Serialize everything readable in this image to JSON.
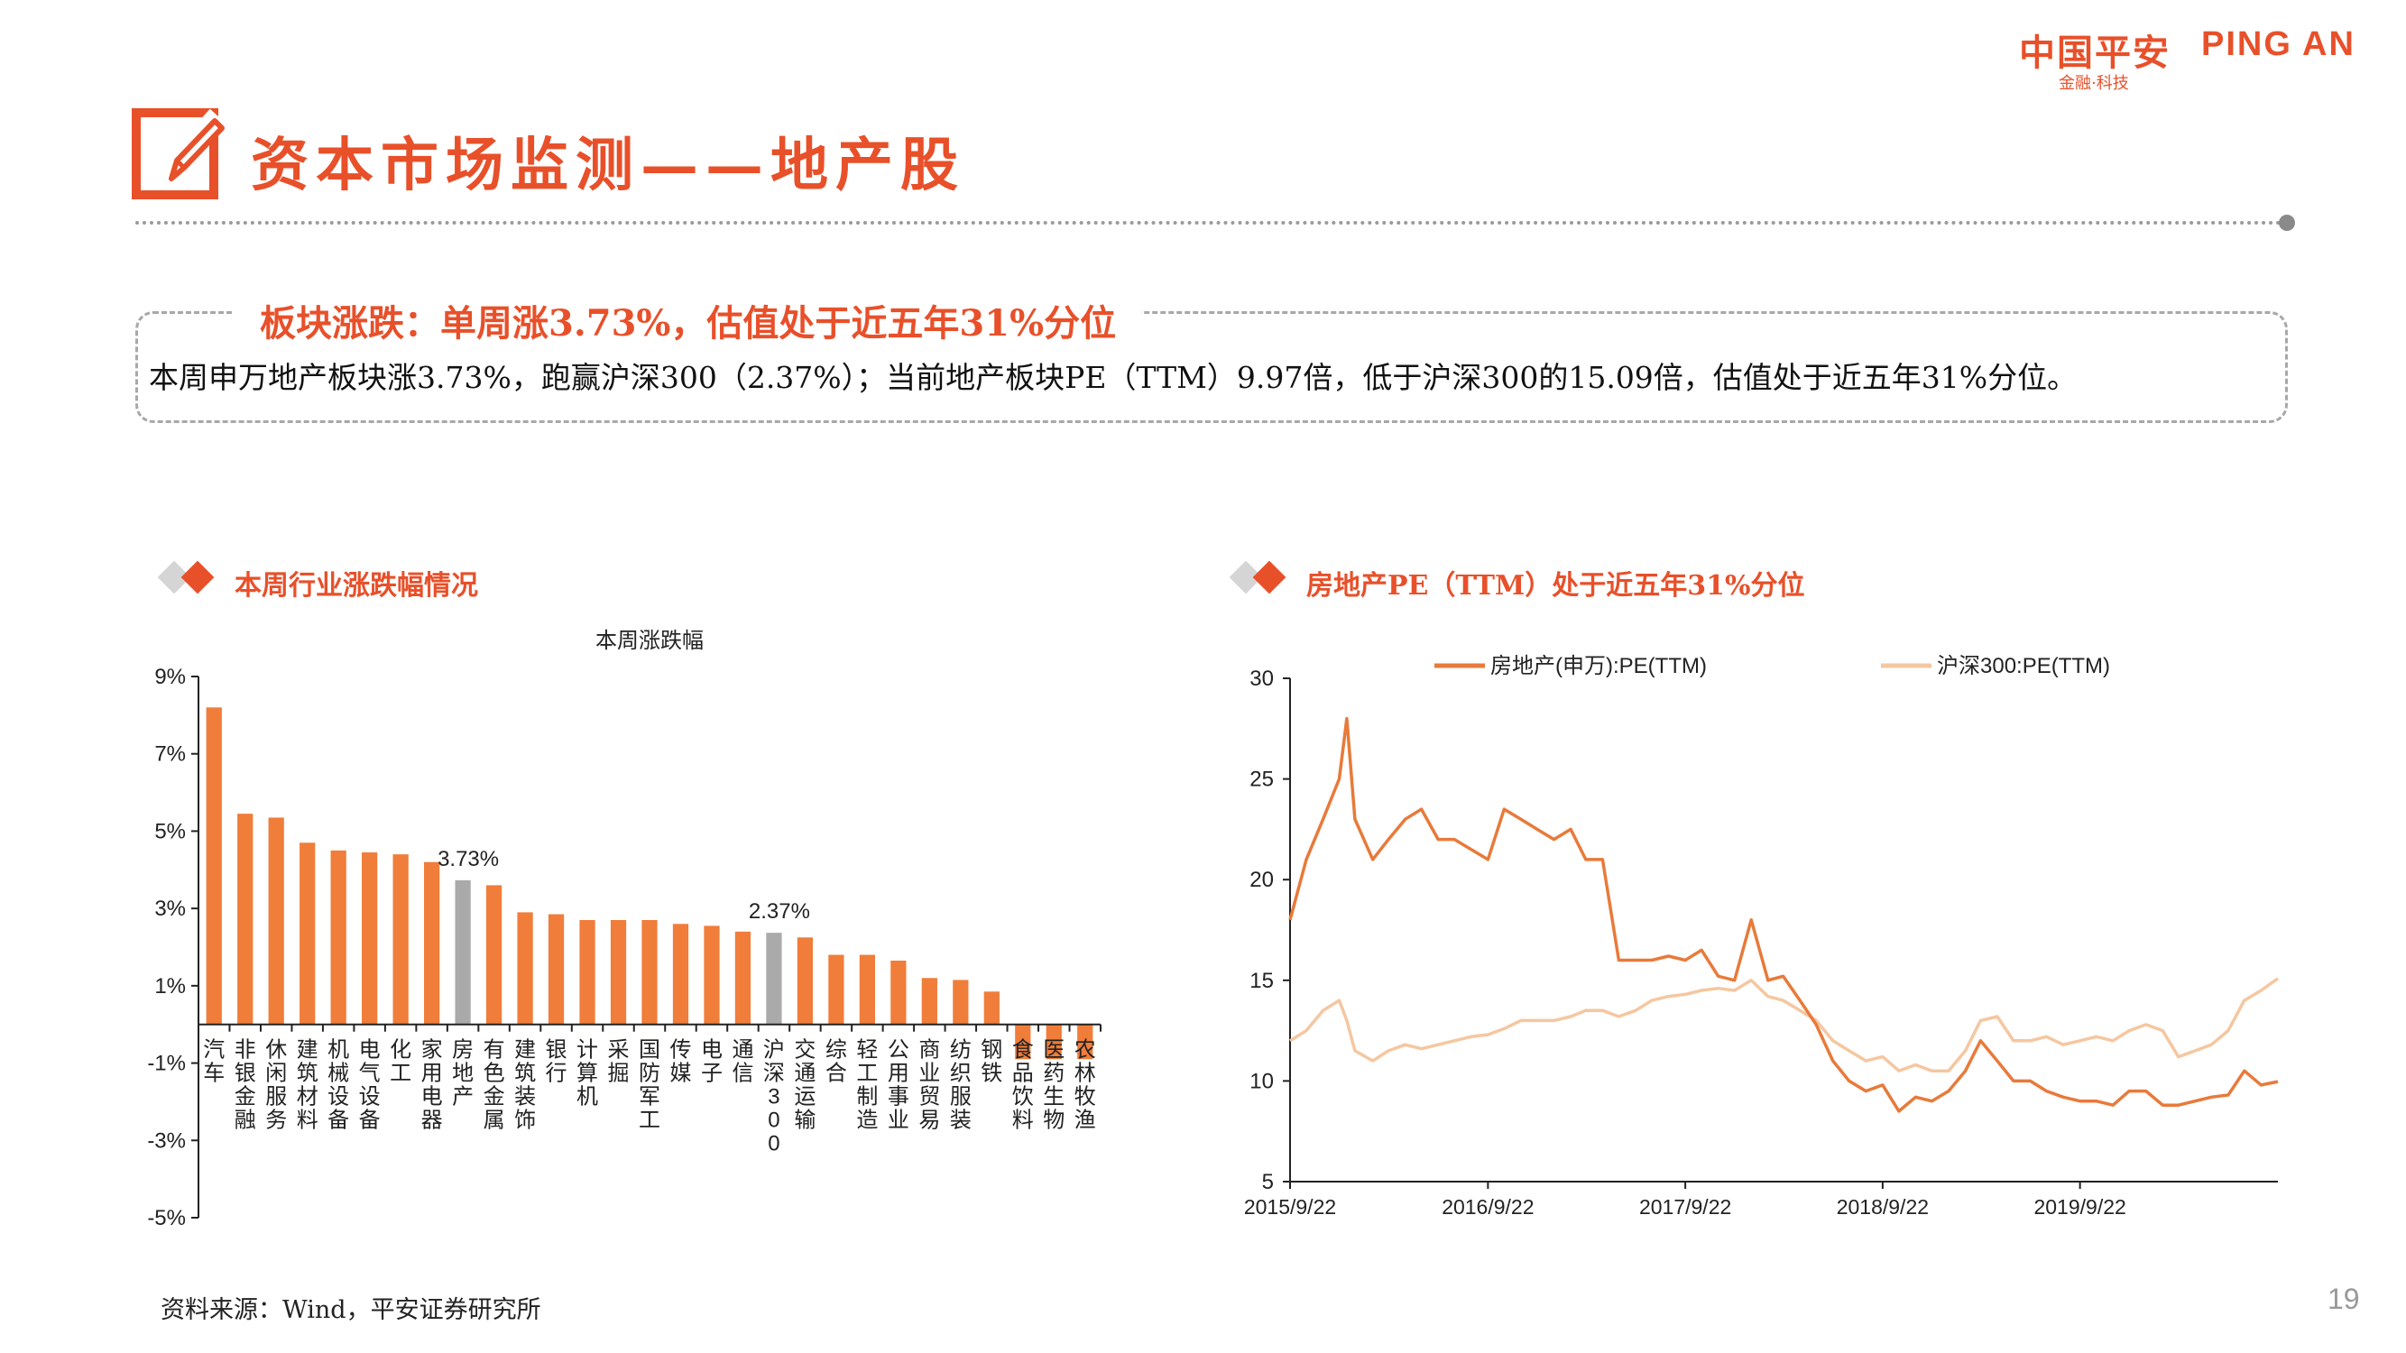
{
  "logo": {
    "cn": "中国平安",
    "en": "PING AN",
    "sub": "金融·科技"
  },
  "title": "资本市场监测——地产股",
  "summary": {
    "title": "板块涨跌：单周涨3.73%，估值处于近五年31%分位",
    "text": "本周申万地产板块涨3.73%，跑赢沪深300（2.37%）；当前地产板块PE（TTM）9.97倍，低于沪深300的15.09倍，估值处于近五年31%分位。"
  },
  "left_section_title": "本周行业涨跌幅情况",
  "right_section_title": "房地产PE（TTM）处于近五年31%分位",
  "source": "资料来源：Wind，平安证券研究所",
  "page_number": "19",
  "colors": {
    "accent": "#E8502A",
    "bar": "#F07D3A",
    "highlight": "#AAAAAA",
    "line1": "#E87A3A",
    "line2": "#F5C7A0"
  },
  "chart_data": [
    {
      "type": "bar",
      "title": "本周涨跌幅",
      "categories": [
        "汽车",
        "非银金融",
        "休闲服务",
        "建筑材料",
        "机械设备",
        "电气设备",
        "化工",
        "家用电器",
        "房地产",
        "有色金属",
        "建筑装饰",
        "银行",
        "计算机",
        "采掘",
        "国防军工",
        "传媒",
        "电子",
        "通信",
        "沪深300",
        "交通运输",
        "综合",
        "轻工制造",
        "公用事业",
        "商业贸易",
        "纺织服装",
        "钢铁",
        "食品饮料",
        "医药生物",
        "农林牧渔"
      ],
      "values": [
        8.2,
        5.45,
        5.35,
        4.7,
        4.5,
        4.45,
        4.4,
        4.2,
        3.73,
        3.6,
        2.9,
        2.85,
        2.7,
        2.7,
        2.7,
        2.6,
        2.55,
        2.4,
        2.37,
        2.25,
        1.8,
        1.8,
        1.65,
        1.2,
        1.15,
        0.85,
        -0.9,
        -0.9,
        -0.9
      ],
      "highlight": [
        "房地产",
        "沪深300"
      ],
      "data_labels": [
        {
          "category": "房地产",
          "text": "3.73%"
        },
        {
          "category": "沪深300",
          "text": "2.37%"
        }
      ],
      "yticks": [
        "9%",
        "7%",
        "5%",
        "3%",
        "1%",
        "-1%",
        "-3%",
        "-5%"
      ],
      "ylim": [
        -5,
        9
      ]
    },
    {
      "type": "line",
      "series": [
        {
          "name": "房地产(申万):PE(TTM)",
          "points": [
            [
              "2015/9/22",
              18
            ],
            [
              "2015/10/22",
              21
            ],
            [
              "2015/11/22",
              23
            ],
            [
              "2015/12/22",
              25
            ],
            [
              "2016/1/5",
              28
            ],
            [
              "2016/1/20",
              23
            ],
            [
              "2016/2/22",
              21
            ],
            [
              "2016/3/22",
              22
            ],
            [
              "2016/4/22",
              23
            ],
            [
              "2016/5/22",
              23.5
            ],
            [
              "2016/6/22",
              22
            ],
            [
              "2016/7/22",
              22
            ],
            [
              "2016/8/22",
              21.5
            ],
            [
              "2016/9/22",
              21
            ],
            [
              "2016/10/22",
              23.5
            ],
            [
              "2016/11/22",
              23
            ],
            [
              "2016/12/22",
              22.5
            ],
            [
              "2017/1/22",
              22
            ],
            [
              "2017/2/22",
              22.5
            ],
            [
              "2017/3/22",
              21
            ],
            [
              "2017/4/22",
              21
            ],
            [
              "2017/5/22",
              16
            ],
            [
              "2017/6/22",
              16
            ],
            [
              "2017/7/22",
              16
            ],
            [
              "2017/8/22",
              16.2
            ],
            [
              "2017/9/22",
              16
            ],
            [
              "2017/10/22",
              16.5
            ],
            [
              "2017/11/22",
              15.2
            ],
            [
              "2017/12/22",
              15
            ],
            [
              "2018/1/22",
              18
            ],
            [
              "2018/2/22",
              15
            ],
            [
              "2018/3/22",
              15.2
            ],
            [
              "2018/4/22",
              14
            ],
            [
              "2018/5/22",
              12.8
            ],
            [
              "2018/6/22",
              11
            ],
            [
              "2018/7/22",
              10
            ],
            [
              "2018/8/22",
              9.5
            ],
            [
              "2018/9/22",
              9.8
            ],
            [
              "2018/10/22",
              8.5
            ],
            [
              "2018/11/22",
              9.2
            ],
            [
              "2018/12/22",
              9
            ],
            [
              "2019/1/22",
              9.5
            ],
            [
              "2019/2/22",
              10.5
            ],
            [
              "2019/3/22",
              12
            ],
            [
              "2019/4/22",
              11
            ],
            [
              "2019/5/22",
              10
            ],
            [
              "2019/6/22",
              10
            ],
            [
              "2019/7/22",
              9.5
            ],
            [
              "2019/8/22",
              9.2
            ],
            [
              "2019/9/22",
              9
            ],
            [
              "2019/10/22",
              9
            ],
            [
              "2019/11/22",
              8.8
            ],
            [
              "2019/12/22",
              9.5
            ],
            [
              "2020/1/22",
              9.5
            ],
            [
              "2020/2/22",
              8.8
            ],
            [
              "2020/3/22",
              8.8
            ],
            [
              "2020/4/22",
              9
            ],
            [
              "2020/5/22",
              9.2
            ],
            [
              "2020/6/22",
              9.3
            ],
            [
              "2020/7/22",
              10.5
            ],
            [
              "2020/8/22",
              9.8
            ],
            [
              "2020/9/22",
              9.97
            ]
          ]
        },
        {
          "name": "沪深300:PE(TTM)",
          "points": [
            [
              "2015/9/22",
              12
            ],
            [
              "2015/10/22",
              12.5
            ],
            [
              "2015/11/22",
              13.5
            ],
            [
              "2015/12/22",
              14
            ],
            [
              "2016/1/5",
              13
            ],
            [
              "2016/1/20",
              11.5
            ],
            [
              "2016/2/22",
              11
            ],
            [
              "2016/3/22",
              11.5
            ],
            [
              "2016/4/22",
              11.8
            ],
            [
              "2016/5/22",
              11.6
            ],
            [
              "2016/6/22",
              11.8
            ],
            [
              "2016/7/22",
              12
            ],
            [
              "2016/8/22",
              12.2
            ],
            [
              "2016/9/22",
              12.3
            ],
            [
              "2016/10/22",
              12.6
            ],
            [
              "2016/11/22",
              13
            ],
            [
              "2016/12/22",
              13
            ],
            [
              "2017/1/22",
              13
            ],
            [
              "2017/2/22",
              13.2
            ],
            [
              "2017/3/22",
              13.5
            ],
            [
              "2017/4/22",
              13.5
            ],
            [
              "2017/5/22",
              13.2
            ],
            [
              "2017/6/22",
              13.5
            ],
            [
              "2017/7/22",
              14
            ],
            [
              "2017/8/22",
              14.2
            ],
            [
              "2017/9/22",
              14.3
            ],
            [
              "2017/10/22",
              14.5
            ],
            [
              "2017/11/22",
              14.6
            ],
            [
              "2017/12/22",
              14.5
            ],
            [
              "2018/1/22",
              15
            ],
            [
              "2018/2/22",
              14.2
            ],
            [
              "2018/3/22",
              14
            ],
            [
              "2018/4/22",
              13.5
            ],
            [
              "2018/5/22",
              13
            ],
            [
              "2018/6/22",
              12
            ],
            [
              "2018/7/22",
              11.5
            ],
            [
              "2018/8/22",
              11
            ],
            [
              "2018/9/22",
              11.2
            ],
            [
              "2018/10/22",
              10.5
            ],
            [
              "2018/11/22",
              10.8
            ],
            [
              "2018/12/22",
              10.5
            ],
            [
              "2019/1/22",
              10.5
            ],
            [
              "2019/2/22",
              11.5
            ],
            [
              "2019/3/22",
              13
            ],
            [
              "2019/4/22",
              13.2
            ],
            [
              "2019/5/22",
              12
            ],
            [
              "2019/6/22",
              12
            ],
            [
              "2019/7/22",
              12.2
            ],
            [
              "2019/8/22",
              11.8
            ],
            [
              "2019/9/22",
              12
            ],
            [
              "2019/10/22",
              12.2
            ],
            [
              "2019/11/22",
              12
            ],
            [
              "2019/12/22",
              12.5
            ],
            [
              "2020/1/22",
              12.8
            ],
            [
              "2020/2/22",
              12.5
            ],
            [
              "2020/3/22",
              11.2
            ],
            [
              "2020/4/22",
              11.5
            ],
            [
              "2020/5/22",
              11.8
            ],
            [
              "2020/6/22",
              12.5
            ],
            [
              "2020/7/22",
              14
            ],
            [
              "2020/8/22",
              14.5
            ],
            [
              "2020/9/22",
              15.09
            ]
          ]
        }
      ],
      "x_ticks": [
        "2015/9/22",
        "2016/9/22",
        "2017/9/22",
        "2018/9/22",
        "2019/9/22"
      ],
      "yticks": [
        "30",
        "25",
        "20",
        "15",
        "10",
        "5"
      ],
      "ylim": [
        5,
        30
      ]
    }
  ]
}
